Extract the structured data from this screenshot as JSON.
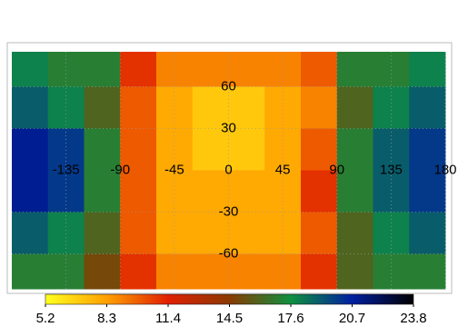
{
  "chart_data": {
    "type": "heatmap",
    "x_edges": [
      -180,
      -150,
      -120,
      -90,
      -60,
      -30,
      0,
      30,
      60,
      90,
      120,
      150,
      180
    ],
    "y_edges": [
      85,
      60,
      30,
      0,
      -30,
      -60,
      -85
    ],
    "z": [
      [
        18,
        17,
        17,
        11,
        9,
        9,
        9,
        9,
        10,
        17,
        17,
        18
      ],
      [
        19,
        18,
        16,
        10,
        8,
        7,
        7,
        8,
        9,
        16,
        18,
        19
      ],
      [
        21,
        20,
        17,
        10,
        8,
        7,
        7,
        8,
        10,
        17,
        19,
        20
      ],
      [
        21,
        20,
        17,
        10,
        8,
        8,
        8,
        8,
        11,
        17,
        19,
        20
      ],
      [
        19,
        18,
        16,
        10,
        8,
        8,
        8,
        8,
        10,
        16,
        18,
        19
      ],
      [
        17,
        17,
        15,
        11,
        9,
        9,
        9,
        9,
        11,
        16,
        17,
        17
      ]
    ],
    "xlim": [
      -180,
      180
    ],
    "ylim": [
      -85,
      85
    ],
    "xticks": [
      -135,
      -90,
      -45,
      0,
      45,
      90,
      135,
      180
    ],
    "yticks": [
      -60,
      -30,
      30,
      60
    ],
    "grid": true,
    "clim": [
      5.2,
      23.8
    ],
    "cticks": [
      5.2,
      8.3,
      11.4,
      14.5,
      17.6,
      20.7,
      23.8
    ],
    "colorscale": [
      "#ffff20",
      "#ffa000",
      "#e02000",
      "#8a3a00",
      "#109040",
      "#0020a0",
      "#000000"
    ]
  }
}
